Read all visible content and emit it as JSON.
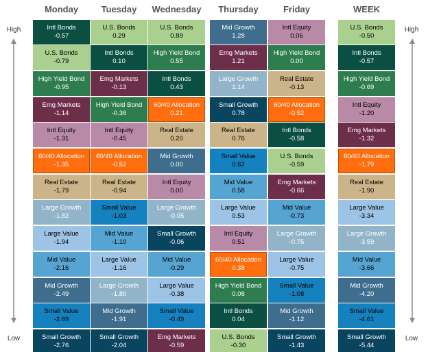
{
  "days": [
    "Monday",
    "Tuesday",
    "Wednesday",
    "Thursday",
    "Friday",
    "WEEK"
  ],
  "axis": {
    "high": "High",
    "low": "Low"
  },
  "categories": {
    "US": {
      "label": "U.S. Bonds",
      "bg": "#a9d08e",
      "fg": "#000000"
    },
    "IB": {
      "label": "Intl Bonds",
      "bg": "#0b4f43",
      "fg": "#ffffff"
    },
    "HY": {
      "label": "High Yield Bond",
      "bg": "#2e7d4f",
      "fg": "#ffffff"
    },
    "EM": {
      "label": "Emg Markets",
      "bg": "#6d2e4a",
      "fg": "#ffffff"
    },
    "IE": {
      "label": "Intl Equity",
      "bg": "#b989a8",
      "fg": "#000000"
    },
    "AL": {
      "label": "60/40 Allocation",
      "bg": "#ff6d0e",
      "fg": "#ffffff"
    },
    "RE": {
      "label": "Real Estate",
      "bg": "#cbb489",
      "fg": "#000000"
    },
    "LG": {
      "label": "Large Growth",
      "bg": "#92b4c9",
      "fg": "#ffffff"
    },
    "LV": {
      "label": "Large Value",
      "bg": "#9dc3e6",
      "fg": "#000000"
    },
    "MV": {
      "label": "Mid Value",
      "bg": "#56a4d1",
      "fg": "#000000"
    },
    "MG": {
      "label": "Mid Growth",
      "bg": "#3e6d8e",
      "fg": "#ffffff"
    },
    "SV": {
      "label": "Small Value",
      "bg": "#1681bf",
      "fg": "#000000"
    },
    "SG": {
      "label": "Small Growth",
      "bg": "#0a4560",
      "fg": "#ffffff"
    }
  },
  "columns": [
    [
      [
        "IB",
        "-0.57"
      ],
      [
        "US",
        "-0.79"
      ],
      [
        "HY",
        "-0.95"
      ],
      [
        "EM",
        "-1.14"
      ],
      [
        "IE",
        "-1.31"
      ],
      [
        "AL",
        "-1.35"
      ],
      [
        "RE",
        "-1.79"
      ],
      [
        "LG",
        "-1.82"
      ],
      [
        "LV",
        "-1.94"
      ],
      [
        "MV",
        "-2.16"
      ],
      [
        "MG",
        "-2.49"
      ],
      [
        "SV",
        "-2.69"
      ],
      [
        "SG",
        "-2.76"
      ]
    ],
    [
      [
        "US",
        "0.29"
      ],
      [
        "IB",
        "0.10"
      ],
      [
        "EM",
        "-0.13"
      ],
      [
        "HY",
        "-0.36"
      ],
      [
        "IE",
        "-0.45"
      ],
      [
        "AL",
        "-0.52"
      ],
      [
        "RE",
        "-0.94"
      ],
      [
        "SV",
        "-1.03"
      ],
      [
        "MV",
        "-1.10"
      ],
      [
        "LV",
        "-1.16"
      ],
      [
        "LG",
        "-1.80"
      ],
      [
        "MG",
        "-1.91"
      ],
      [
        "SG",
        "-2.04"
      ]
    ],
    [
      [
        "US",
        "0.89"
      ],
      [
        "HY",
        "0.55"
      ],
      [
        "IB",
        "0.43"
      ],
      [
        "AL",
        "0.21"
      ],
      [
        "RE",
        "0.20"
      ],
      [
        "MG",
        "0.00"
      ],
      [
        "IE",
        "0.00"
      ],
      [
        "LG",
        "-0.05"
      ],
      [
        "SG",
        "-0.06"
      ],
      [
        "MV",
        "-0.29"
      ],
      [
        "LV",
        "-0.38"
      ],
      [
        "SV",
        "-0.49"
      ],
      [
        "EM",
        "-0.59"
      ]
    ],
    [
      [
        "MG",
        "1.28"
      ],
      [
        "EM",
        "1.21"
      ],
      [
        "LG",
        "1.14"
      ],
      [
        "SG",
        "0.78"
      ],
      [
        "RE",
        "0.76"
      ],
      [
        "SV",
        "0.62"
      ],
      [
        "MV",
        "0.58"
      ],
      [
        "LV",
        "0.53"
      ],
      [
        "IE",
        "0.51"
      ],
      [
        "AL",
        "0.38"
      ],
      [
        "HY",
        "0.08"
      ],
      [
        "IB",
        "0.04"
      ],
      [
        "US",
        "-0.30"
      ]
    ],
    [
      [
        "IE",
        "0.06"
      ],
      [
        "HY",
        "0.00"
      ],
      [
        "RE",
        "-0.13"
      ],
      [
        "AL",
        "-0.52"
      ],
      [
        "IB",
        "-0.58"
      ],
      [
        "US",
        "-0.59"
      ],
      [
        "EM",
        "-0.66"
      ],
      [
        "MV",
        "-0.73"
      ],
      [
        "LG",
        "-0.75"
      ],
      [
        "LV",
        "-0.75"
      ],
      [
        "SV",
        "-1.08"
      ],
      [
        "MG",
        "-1.12"
      ],
      [
        "SG",
        "-1.43"
      ]
    ],
    [
      [
        "US",
        "-0.50"
      ],
      [
        "IB",
        "-0.57"
      ],
      [
        "HY",
        "-0.69"
      ],
      [
        "IE",
        "-1.20"
      ],
      [
        "EM",
        "-1.32"
      ],
      [
        "AL",
        "-1.79"
      ],
      [
        "RE",
        "-1.90"
      ],
      [
        "LV",
        "-3.34"
      ],
      [
        "LG",
        "-3.59"
      ],
      [
        "MV",
        "-3.66"
      ],
      [
        "MG",
        "-4.20"
      ],
      [
        "SV",
        "-4.61"
      ],
      [
        "SG",
        "-5.44"
      ]
    ]
  ]
}
